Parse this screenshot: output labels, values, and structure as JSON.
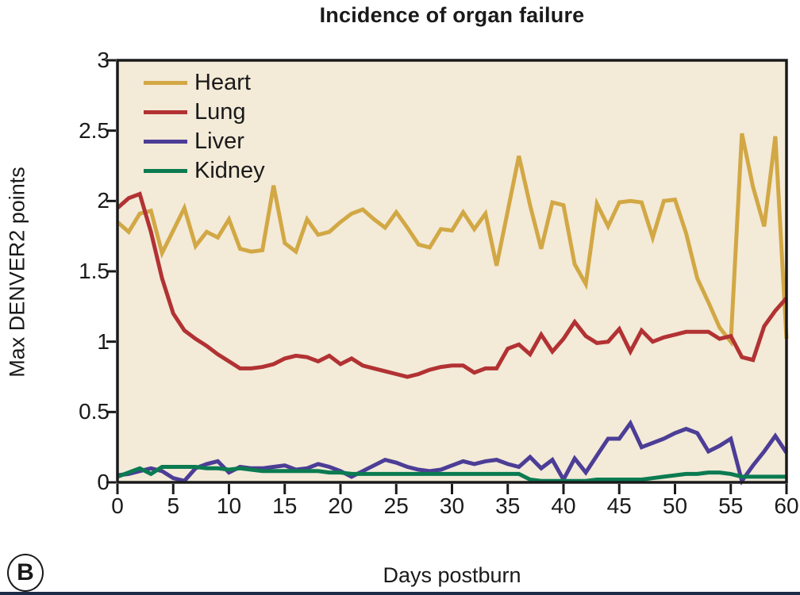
{
  "figure": {
    "title": "Incidence of organ failure",
    "panel_label": "B",
    "x_axis": {
      "label": "Days postburn"
    },
    "y_axis": {
      "label": "Max DENVER2 points"
    },
    "colors": {
      "plot_background": "#f3ead8",
      "frame": "#1a1a1a",
      "tick": "#1a1a1a",
      "bottom_rule": "#1c2c48"
    }
  },
  "chart_data": {
    "type": "line",
    "title": "Incidence of organ failure",
    "xlabel": "Days postburn",
    "ylabel": "Max DENVER2 points",
    "xlim": [
      0,
      60
    ],
    "ylim": [
      0,
      3
    ],
    "x_ticks": [
      0,
      5,
      10,
      15,
      20,
      25,
      30,
      35,
      40,
      45,
      50,
      55,
      60
    ],
    "y_ticks": [
      "0",
      "0.5",
      "1",
      "1.5",
      "2",
      "2.5",
      "3"
    ],
    "grid": false,
    "legend_position": "top-left-inside",
    "x": [
      0,
      1,
      2,
      3,
      4,
      5,
      6,
      7,
      8,
      9,
      10,
      11,
      12,
      13,
      14,
      15,
      16,
      17,
      18,
      19,
      20,
      21,
      22,
      23,
      24,
      25,
      26,
      27,
      28,
      29,
      30,
      31,
      32,
      33,
      34,
      35,
      36,
      37,
      38,
      39,
      40,
      41,
      42,
      43,
      44,
      45,
      46,
      47,
      48,
      49,
      50,
      51,
      52,
      53,
      54,
      55,
      56,
      57,
      58,
      59,
      60
    ],
    "series": [
      {
        "name": "Heart",
        "color": "#d2a845",
        "values": [
          1.85,
          1.78,
          1.91,
          1.93,
          1.63,
          1.79,
          1.95,
          1.68,
          1.78,
          1.74,
          1.87,
          1.66,
          1.64,
          1.65,
          2.11,
          1.7,
          1.64,
          1.87,
          1.76,
          1.78,
          1.85,
          1.91,
          1.94,
          1.87,
          1.81,
          1.92,
          1.81,
          1.69,
          1.67,
          1.8,
          1.79,
          1.92,
          1.8,
          1.91,
          1.54,
          1.93,
          2.32,
          1.97,
          1.66,
          1.99,
          1.97,
          1.55,
          1.41,
          1.98,
          1.82,
          1.99,
          2.0,
          1.99,
          1.74,
          2.0,
          2.01,
          1.77,
          1.45,
          1.28,
          1.1,
          1.0,
          2.48,
          2.1,
          1.82,
          2.46,
          1.02
        ]
      },
      {
        "name": "Lung",
        "color": "#b23233",
        "values": [
          1.95,
          2.02,
          2.05,
          1.78,
          1.45,
          1.2,
          1.08,
          1.02,
          0.97,
          0.91,
          0.86,
          0.81,
          0.81,
          0.82,
          0.84,
          0.88,
          0.9,
          0.89,
          0.86,
          0.9,
          0.84,
          0.88,
          0.83,
          0.81,
          0.79,
          0.77,
          0.75,
          0.77,
          0.8,
          0.82,
          0.83,
          0.83,
          0.78,
          0.81,
          0.81,
          0.95,
          0.98,
          0.91,
          1.05,
          0.93,
          1.02,
          1.14,
          1.04,
          0.99,
          1.0,
          1.09,
          0.93,
          1.08,
          1.0,
          1.03,
          1.05,
          1.07,
          1.07,
          1.07,
          1.02,
          1.04,
          0.89,
          0.87,
          1.11,
          1.22,
          1.31
        ]
      },
      {
        "name": "Liver",
        "color": "#4c3d96",
        "values": [
          0.05,
          0.06,
          0.08,
          0.1,
          0.08,
          0.03,
          0.01,
          0.1,
          0.13,
          0.15,
          0.07,
          0.11,
          0.1,
          0.1,
          0.11,
          0.12,
          0.09,
          0.1,
          0.13,
          0.11,
          0.08,
          0.04,
          0.08,
          0.12,
          0.16,
          0.14,
          0.11,
          0.09,
          0.08,
          0.09,
          0.12,
          0.15,
          0.13,
          0.15,
          0.16,
          0.13,
          0.11,
          0.18,
          0.1,
          0.16,
          0.02,
          0.17,
          0.07,
          0.19,
          0.31,
          0.31,
          0.42,
          0.25,
          0.28,
          0.31,
          0.35,
          0.38,
          0.35,
          0.22,
          0.26,
          0.31,
          0.01,
          0.12,
          0.22,
          0.33,
          0.21
        ]
      },
      {
        "name": "Kidney",
        "color": "#0b7b51",
        "values": [
          0.04,
          0.07,
          0.1,
          0.06,
          0.11,
          0.11,
          0.11,
          0.11,
          0.1,
          0.1,
          0.09,
          0.1,
          0.09,
          0.08,
          0.08,
          0.08,
          0.08,
          0.08,
          0.08,
          0.07,
          0.07,
          0.06,
          0.06,
          0.06,
          0.06,
          0.06,
          0.06,
          0.06,
          0.06,
          0.06,
          0.06,
          0.06,
          0.06,
          0.06,
          0.06,
          0.06,
          0.06,
          0.02,
          0.01,
          0.01,
          0.01,
          0.01,
          0.01,
          0.02,
          0.02,
          0.02,
          0.02,
          0.02,
          0.03,
          0.04,
          0.05,
          0.06,
          0.06,
          0.07,
          0.07,
          0.06,
          0.04,
          0.04,
          0.04,
          0.04,
          0.04
        ]
      }
    ]
  }
}
